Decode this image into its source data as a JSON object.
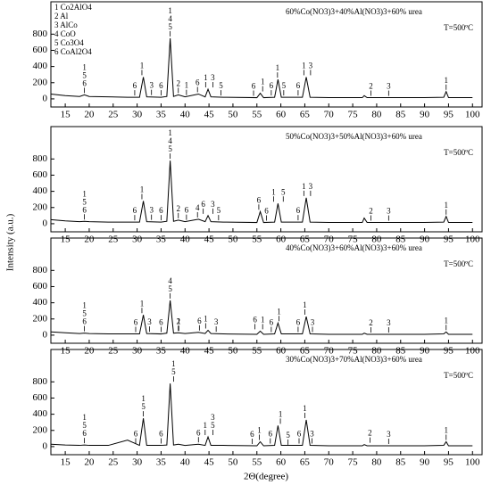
{
  "ylabel": "Intensity (a.u.)",
  "xlabel": "2Θ(degree)",
  "chart_data": [
    {
      "type": "line",
      "title": "60%Co(NO3)3+40%Al(NO3)3+60% urea",
      "subtitle": "T=500ºC",
      "phase_key": [
        "1 Co2AlO4",
        "2 Al",
        "3 AlCo",
        "4 CoO",
        "5 Co3O4",
        "6 CoAl2O4"
      ],
      "x": [
        12,
        15,
        18,
        19,
        20,
        24,
        28,
        30.5,
        31.3,
        32,
        35,
        36.2,
        36.9,
        37.6,
        38.6,
        40,
        42.8,
        44.2,
        44.8,
        45.4,
        48,
        55,
        55.7,
        56.4,
        58.7,
        59.4,
        60.1,
        64.5,
        65.3,
        66.1,
        70,
        77,
        77.4,
        78,
        82.5,
        90,
        94,
        94.5,
        95,
        100
      ],
      "values": [
        60,
        40,
        30,
        50,
        30,
        25,
        20,
        20,
        270,
        25,
        20,
        30,
        750,
        30,
        50,
        25,
        60,
        25,
        120,
        25,
        20,
        15,
        70,
        15,
        20,
        240,
        20,
        20,
        270,
        20,
        15,
        15,
        40,
        15,
        15,
        15,
        20,
        90,
        15,
        15
      ],
      "color": "#000000",
      "xlim": [
        12,
        102
      ],
      "ylim": [
        -100,
        1200
      ],
      "xticks": [
        15,
        20,
        25,
        30,
        35,
        40,
        45,
        50,
        55,
        60,
        65,
        70,
        75,
        80,
        85,
        90,
        95,
        100
      ],
      "yticks": [
        0,
        200,
        400,
        600,
        800
      ],
      "annotations": [
        {
          "x": 19,
          "labels": [
            "1",
            "5",
            "6"
          ]
        },
        {
          "x": 29.5,
          "labels": [
            "6"
          ]
        },
        {
          "x": 31,
          "labels": [
            "1"
          ]
        },
        {
          "x": 33,
          "labels": [
            "3"
          ]
        },
        {
          "x": 35,
          "labels": [
            "6"
          ]
        },
        {
          "x": 36.9,
          "labels": [
            "1",
            "4",
            "5"
          ]
        },
        {
          "x": 38.6,
          "labels": [
            "2"
          ]
        },
        {
          "x": 40.3,
          "labels": [
            "1"
          ]
        },
        {
          "x": 42.6,
          "labels": [
            "6"
          ]
        },
        {
          "x": 44.3,
          "labels": [
            "1"
          ]
        },
        {
          "x": 45.8,
          "labels": [
            "3"
          ]
        },
        {
          "x": 47.5,
          "labels": [
            "5"
          ]
        },
        {
          "x": 54.3,
          "labels": [
            "6"
          ]
        },
        {
          "x": 56.2,
          "labels": [
            "1"
          ]
        },
        {
          "x": 58,
          "labels": [
            "6"
          ]
        },
        {
          "x": 59.3,
          "labels": [
            "1"
          ]
        },
        {
          "x": 60.6,
          "labels": [
            "5"
          ]
        },
        {
          "x": 63.6,
          "labels": [
            "6"
          ]
        },
        {
          "x": 64.8,
          "labels": [
            "1"
          ]
        },
        {
          "x": 66.2,
          "labels": [
            "3"
          ]
        },
        {
          "x": 78.8,
          "labels": [
            "2"
          ]
        },
        {
          "x": 82.5,
          "labels": [
            "3"
          ]
        },
        {
          "x": 94.5,
          "labels": [
            "1"
          ]
        }
      ]
    },
    {
      "type": "line",
      "title": "50%Co(NO3)3+50%Al(NO3)3+60% urea",
      "subtitle": "T=500ºC",
      "x": [
        12,
        15,
        18,
        19,
        20,
        24,
        28,
        30.5,
        31.3,
        32,
        35,
        36.2,
        36.9,
        37.6,
        38.6,
        40,
        42.8,
        44.2,
        44.8,
        45.4,
        48,
        55,
        55.7,
        56.4,
        58.7,
        59.4,
        60.1,
        64.5,
        65.3,
        66.1,
        70,
        77,
        77.4,
        78,
        82.5,
        90,
        94,
        94.5,
        95,
        100
      ],
      "values": [
        50,
        35,
        25,
        30,
        25,
        20,
        20,
        20,
        280,
        25,
        20,
        30,
        780,
        30,
        45,
        25,
        55,
        25,
        100,
        25,
        20,
        15,
        150,
        15,
        20,
        250,
        20,
        20,
        320,
        20,
        15,
        15,
        70,
        15,
        15,
        15,
        20,
        90,
        15,
        15
      ],
      "color": "#000000",
      "xlim": [
        12,
        102
      ],
      "ylim": [
        -100,
        1200
      ],
      "xticks": [
        15,
        20,
        25,
        30,
        35,
        40,
        45,
        50,
        55,
        60,
        65,
        70,
        75,
        80,
        85,
        90,
        95,
        100
      ],
      "yticks": [
        0,
        200,
        400,
        600,
        800
      ],
      "annotations": [
        {
          "x": 19,
          "labels": [
            "1",
            "5",
            "6"
          ]
        },
        {
          "x": 29.5,
          "labels": [
            "6"
          ]
        },
        {
          "x": 31,
          "labels": [
            "1"
          ]
        },
        {
          "x": 33,
          "labels": [
            "3"
          ]
        },
        {
          "x": 35,
          "labels": [
            "6"
          ]
        },
        {
          "x": 36.9,
          "labels": [
            "1",
            "4",
            "5"
          ]
        },
        {
          "x": 38.6,
          "labels": [
            "2"
          ]
        },
        {
          "x": 40.3,
          "labels": [
            "6"
          ]
        },
        {
          "x": 42.6,
          "labels": [
            "4"
          ]
        },
        {
          "x": 43.8,
          "labels": [
            "6"
          ]
        },
        {
          "x": 45.8,
          "labels": [
            "3"
          ]
        },
        {
          "x": 47,
          "labels": [
            "5"
          ]
        },
        {
          "x": 55.4,
          "labels": [
            "6"
          ]
        },
        {
          "x": 57,
          "labels": [
            "6"
          ]
        },
        {
          "x": 58.5,
          "labels": [
            "1"
          ]
        },
        {
          "x": 60.5,
          "labels": [
            "5"
          ]
        },
        {
          "x": 63.6,
          "labels": [
            "6"
          ]
        },
        {
          "x": 64.8,
          "labels": [
            "1"
          ]
        },
        {
          "x": 66.2,
          "labels": [
            "3"
          ]
        },
        {
          "x": 78.8,
          "labels": [
            "2"
          ]
        },
        {
          "x": 82.5,
          "labels": [
            "3"
          ]
        },
        {
          "x": 94.5,
          "labels": [
            "1"
          ]
        }
      ]
    },
    {
      "type": "line",
      "title": "40%Co(NO3)3+60%Al(NO3)3+60% urea",
      "subtitle": "T=500ºC",
      "x": [
        12,
        15,
        18,
        19,
        20,
        24,
        28,
        30.5,
        31.3,
        32,
        35,
        36.2,
        36.9,
        37.6,
        38.6,
        40,
        42.8,
        44.2,
        44.8,
        45.4,
        48,
        55,
        55.7,
        56.4,
        58.7,
        59.4,
        60.1,
        64.5,
        65.3,
        66.1,
        70,
        77,
        77.4,
        78,
        82.5,
        90,
        94,
        94.5,
        95,
        100
      ],
      "values": [
        40,
        30,
        20,
        25,
        20,
        15,
        15,
        15,
        250,
        20,
        15,
        25,
        430,
        25,
        30,
        20,
        35,
        20,
        60,
        20,
        15,
        10,
        50,
        10,
        15,
        150,
        15,
        15,
        230,
        15,
        10,
        10,
        25,
        10,
        10,
        10,
        15,
        40,
        10,
        10
      ],
      "color": "#000000",
      "xlim": [
        12,
        102
      ],
      "ylim": [
        -100,
        1200
      ],
      "xticks": [
        15,
        20,
        25,
        30,
        35,
        40,
        45,
        50,
        55,
        60,
        65,
        70,
        75,
        80,
        85,
        90,
        95,
        100
      ],
      "yticks": [
        0,
        200,
        400,
        600,
        800
      ],
      "annotations": [
        {
          "x": 19,
          "labels": [
            "1",
            "5",
            "6"
          ]
        },
        {
          "x": 29.7,
          "labels": [
            "6"
          ]
        },
        {
          "x": 31,
          "labels": [
            "1"
          ]
        },
        {
          "x": 32.6,
          "labels": [
            "3"
          ]
        },
        {
          "x": 35,
          "labels": [
            "6"
          ]
        },
        {
          "x": 36.9,
          "labels": [
            "4",
            "5"
          ]
        },
        {
          "x": 38.7,
          "labels": [
            "1"
          ]
        },
        {
          "x": 38.6,
          "labels": [
            "2"
          ]
        },
        {
          "x": 43,
          "labels": [
            "6"
          ]
        },
        {
          "x": 44.3,
          "labels": [
            "1"
          ]
        },
        {
          "x": 46.5,
          "labels": [
            "3"
          ]
        },
        {
          "x": 54.6,
          "labels": [
            "6"
          ]
        },
        {
          "x": 56.2,
          "labels": [
            "1"
          ]
        },
        {
          "x": 58,
          "labels": [
            "6"
          ]
        },
        {
          "x": 59.6,
          "labels": [
            "1"
          ]
        },
        {
          "x": 63.6,
          "labels": [
            "6"
          ]
        },
        {
          "x": 65,
          "labels": [
            "1"
          ]
        },
        {
          "x": 66.6,
          "labels": [
            "3"
          ]
        },
        {
          "x": 78.8,
          "labels": [
            "2"
          ]
        },
        {
          "x": 82.5,
          "labels": [
            "3"
          ]
        },
        {
          "x": 94.5,
          "labels": [
            "1"
          ]
        }
      ]
    },
    {
      "type": "line",
      "title": "30%Co(NO3)3+70%Al(NO3)3+60% urea",
      "subtitle": "T=500ºC",
      "x": [
        12,
        15,
        18,
        19,
        20,
        24,
        28,
        30.5,
        31.3,
        32,
        35,
        36.2,
        36.9,
        37.6,
        38.6,
        40,
        42.8,
        44.2,
        44.8,
        45.4,
        48,
        55,
        55.7,
        56.4,
        58.7,
        59.4,
        60.1,
        64.5,
        65.3,
        66.1,
        70,
        77,
        77.4,
        78,
        82.5,
        90,
        94,
        94.5,
        95,
        100
      ],
      "values": [
        30,
        20,
        15,
        20,
        15,
        15,
        80,
        15,
        350,
        15,
        15,
        20,
        780,
        20,
        30,
        15,
        30,
        15,
        120,
        15,
        15,
        10,
        60,
        10,
        15,
        260,
        15,
        15,
        330,
        15,
        10,
        10,
        25,
        10,
        10,
        10,
        15,
        60,
        10,
        10
      ],
      "color": "#000000",
      "xlim": [
        12,
        102
      ],
      "ylim": [
        -100,
        1200
      ],
      "xticks": [
        15,
        20,
        25,
        30,
        35,
        40,
        45,
        50,
        55,
        60,
        65,
        70,
        75,
        80,
        85,
        90,
        95,
        100
      ],
      "yticks": [
        0,
        200,
        400,
        600,
        800
      ],
      "annotations": [
        {
          "x": 19,
          "labels": [
            "1",
            "5",
            "6"
          ]
        },
        {
          "x": 29.7,
          "labels": [
            "6"
          ]
        },
        {
          "x": 31.3,
          "labels": [
            "1",
            "5"
          ]
        },
        {
          "x": 35,
          "labels": [
            "6"
          ]
        },
        {
          "x": 37.6,
          "labels": [
            "1",
            "5"
          ]
        },
        {
          "x": 42.8,
          "labels": [
            "6"
          ]
        },
        {
          "x": 44.2,
          "labels": [
            "1"
          ]
        },
        {
          "x": 45.8,
          "labels": [
            "3",
            "5"
          ]
        },
        {
          "x": 54,
          "labels": [
            "6"
          ]
        },
        {
          "x": 55.5,
          "labels": [
            "1"
          ]
        },
        {
          "x": 57.8,
          "labels": [
            "6"
          ]
        },
        {
          "x": 59.9,
          "labels": [
            "1"
          ]
        },
        {
          "x": 61.5,
          "labels": [
            "5"
          ]
        },
        {
          "x": 63.8,
          "labels": [
            "6"
          ]
        },
        {
          "x": 65,
          "labels": [
            "1"
          ]
        },
        {
          "x": 66.5,
          "labels": [
            "3"
          ]
        },
        {
          "x": 78.6,
          "labels": [
            "2"
          ]
        },
        {
          "x": 82.5,
          "labels": [
            "3"
          ]
        },
        {
          "x": 94.5,
          "labels": [
            "1"
          ]
        }
      ]
    }
  ]
}
